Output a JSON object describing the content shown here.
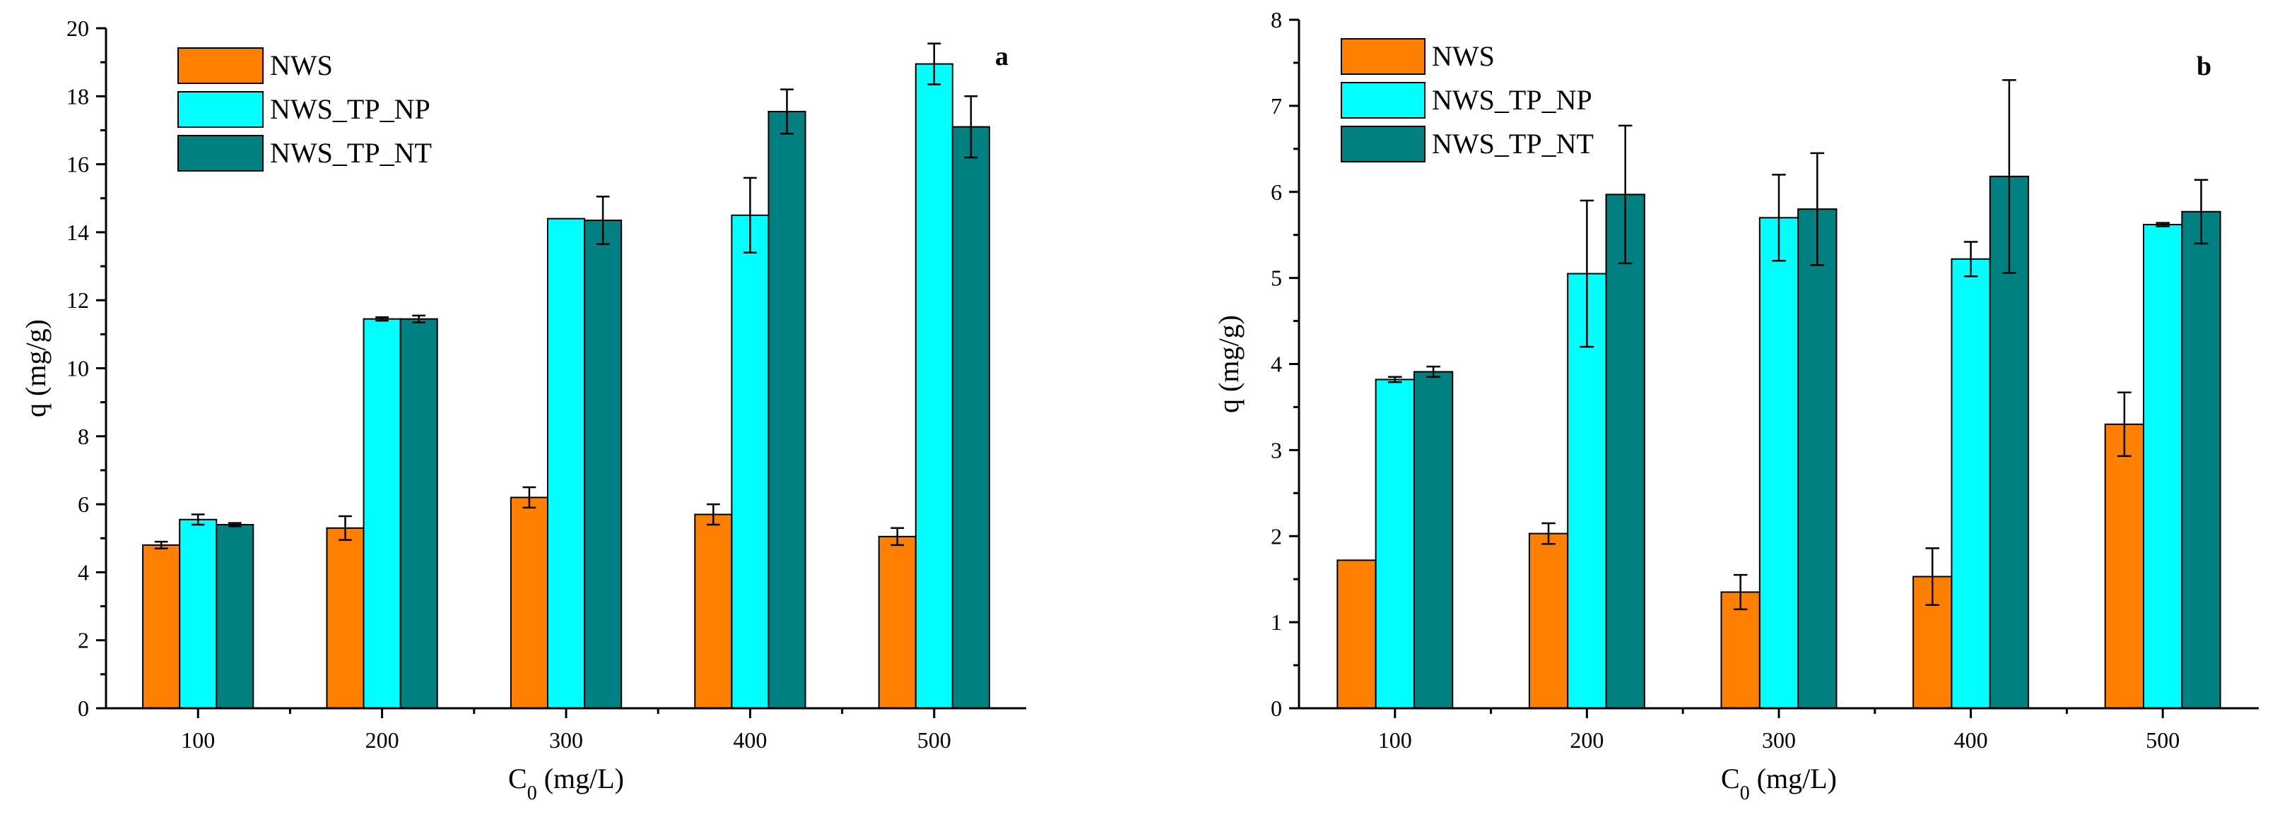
{
  "chart_data": [
    {
      "type": "bar",
      "panel_label": "a",
      "xlabel": "C",
      "xlabel_sub": "0",
      "xlabel_unit": " (mg/L)",
      "ylabel": "q (mg/g)",
      "ylim": [
        0,
        20
      ],
      "yticks": [
        0,
        2,
        4,
        6,
        8,
        10,
        12,
        14,
        16,
        18,
        20
      ],
      "categories": [
        "100",
        "200",
        "300",
        "400",
        "500"
      ],
      "legend_position": "top-left",
      "series": [
        {
          "name": "NWS",
          "color": "#ff8000",
          "values": [
            4.8,
            5.3,
            6.2,
            5.7,
            5.05
          ],
          "errors": [
            0.1,
            0.35,
            0.3,
            0.3,
            0.25
          ]
        },
        {
          "name": "NWS_TP_NP",
          "color": "#00ffff",
          "values": [
            5.55,
            11.45,
            14.4,
            14.5,
            18.95
          ],
          "errors": [
            0.15,
            0.05,
            0.0,
            1.1,
            0.6
          ]
        },
        {
          "name": "NWS_TP_NT",
          "color": "#008080",
          "values": [
            5.4,
            11.45,
            14.35,
            17.55,
            17.1
          ],
          "errors": [
            0.05,
            0.1,
            0.7,
            0.65,
            0.9
          ]
        }
      ]
    },
    {
      "type": "bar",
      "panel_label": "b",
      "xlabel": "C",
      "xlabel_sub": "0",
      "xlabel_unit": " (mg/L)",
      "ylabel": "q (mg/g)",
      "ylim": [
        0,
        8
      ],
      "yticks": [
        0,
        1,
        2,
        3,
        4,
        5,
        6,
        7,
        8
      ],
      "categories": [
        "100",
        "200",
        "300",
        "400",
        "500"
      ],
      "legend_position": "top-left",
      "series": [
        {
          "name": "NWS",
          "color": "#ff8000",
          "values": [
            1.72,
            2.03,
            1.35,
            1.53,
            3.3
          ],
          "errors": [
            0.0,
            0.12,
            0.2,
            0.33,
            0.37
          ]
        },
        {
          "name": "NWS_TP_NP",
          "color": "#00ffff",
          "values": [
            3.82,
            5.05,
            5.7,
            5.22,
            5.62
          ],
          "errors": [
            0.03,
            0.85,
            0.5,
            0.2,
            0.02
          ]
        },
        {
          "name": "NWS_TP_NT",
          "color": "#008080",
          "values": [
            3.91,
            5.97,
            5.8,
            6.18,
            5.77
          ],
          "errors": [
            0.06,
            0.8,
            0.65,
            1.12,
            0.37
          ]
        }
      ]
    }
  ]
}
